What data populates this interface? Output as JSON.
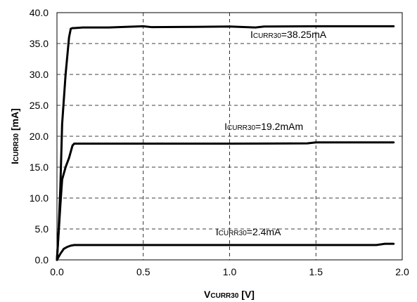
{
  "chart_data": {
    "type": "line",
    "title": "",
    "xlabel": {
      "main": "V",
      "subscript": "CURR30",
      "unit": " [V]"
    },
    "ylabel": {
      "main": "I",
      "subscript": "CURR30",
      "unit": " [mA]"
    },
    "xlim": [
      0.0,
      2.0
    ],
    "ylim": [
      0.0,
      40.0
    ],
    "xticks": [
      "0.0",
      "0.5",
      "1.0",
      "1.5",
      "2.0"
    ],
    "yticks": [
      "0.0",
      "5.0",
      "10.0",
      "15.0",
      "20.0",
      "25.0",
      "30.0",
      "35.0",
      "40.0"
    ],
    "x_tick_values": [
      0.0,
      0.5,
      1.0,
      1.5,
      2.0
    ],
    "y_tick_values": [
      0.0,
      5.0,
      10.0,
      15.0,
      20.0,
      25.0,
      30.0,
      35.0,
      40.0
    ],
    "grid": true,
    "grid_style": "dashed",
    "legend": "none",
    "line_color": "#000000",
    "series": [
      {
        "values_x": [
          0.0,
          0.01,
          0.02,
          0.03,
          0.04,
          0.05,
          0.06,
          0.07,
          0.08,
          0.09,
          0.1,
          0.15,
          0.3,
          0.5,
          0.55,
          0.8,
          1.0,
          1.15,
          1.2,
          1.5,
          1.8,
          1.95
        ],
        "values_y": [
          0.0,
          5.0,
          12.0,
          22.0,
          26.0,
          30.0,
          33.0,
          36.0,
          37.4,
          37.5,
          37.5,
          37.6,
          37.6,
          37.8,
          37.65,
          37.7,
          37.75,
          37.6,
          37.75,
          37.8,
          37.8,
          37.8
        ]
      },
      {
        "values_x": [
          0.0,
          0.02,
          0.03,
          0.05,
          0.07,
          0.09,
          0.1,
          0.2,
          0.5,
          1.0,
          1.45,
          1.5,
          1.8,
          1.95
        ],
        "values_y": [
          0.0,
          9.0,
          13.0,
          15.0,
          16.5,
          18.5,
          18.8,
          18.8,
          18.8,
          18.8,
          18.85,
          19.0,
          19.0,
          19.0
        ]
      },
      {
        "values_x": [
          0.0,
          0.02,
          0.04,
          0.06,
          0.08,
          0.1,
          0.2,
          0.5,
          1.0,
          1.5,
          1.85,
          1.9,
          1.95
        ],
        "values_y": [
          0.0,
          1.0,
          1.8,
          2.1,
          2.3,
          2.4,
          2.4,
          2.4,
          2.4,
          2.4,
          2.4,
          2.6,
          2.6
        ]
      }
    ],
    "annotations": [
      {
        "main": "I",
        "subscript": "CURR30",
        "rest": "=38.25mA",
        "x": 1.12,
        "y": 35.9
      },
      {
        "main": "I",
        "subscript": "CURR30",
        "rest": "=19.2mAm",
        "x": 0.97,
        "y": 21.0
      },
      {
        "main": "I",
        "subscript": "CURR30",
        "rest": "=2.4mA",
        "x": 0.92,
        "y": 4.0
      }
    ]
  }
}
